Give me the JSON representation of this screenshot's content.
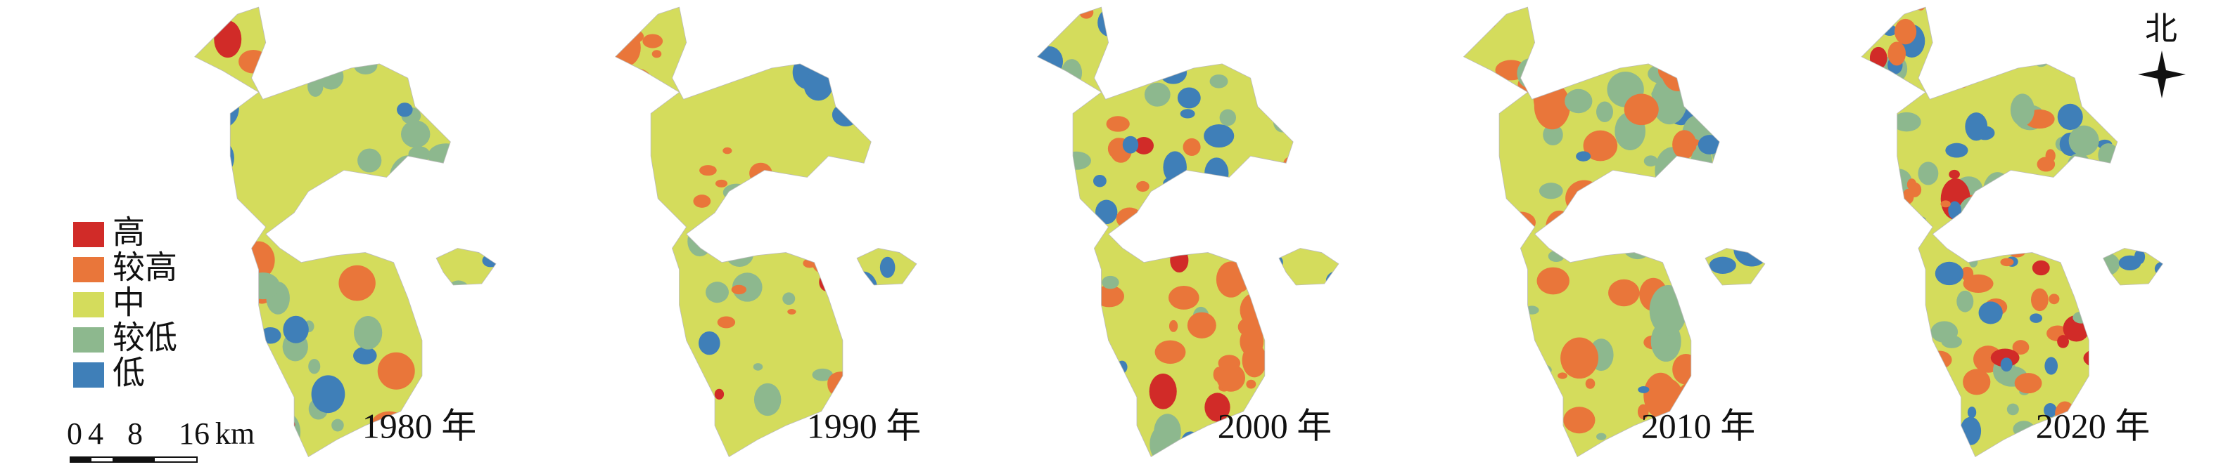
{
  "legend": {
    "items": [
      {
        "label": "高",
        "color": "#d12b28"
      },
      {
        "label": "较高",
        "color": "#e9763a"
      },
      {
        "label": "中",
        "color": "#d4dc5c"
      },
      {
        "label": "较低",
        "color": "#8db88e"
      },
      {
        "label": "低",
        "color": "#3f7fb8"
      }
    ]
  },
  "panels": [
    {
      "year_label": "1980 年"
    },
    {
      "year_label": "1990 年"
    },
    {
      "year_label": "2000 年"
    },
    {
      "year_label": "2010 年"
    },
    {
      "year_label": "2020 年"
    }
  ],
  "scale_bar": {
    "ticks": [
      "0",
      "4",
      "8",
      "16"
    ],
    "unit": "km"
  },
  "north_label": "北"
}
